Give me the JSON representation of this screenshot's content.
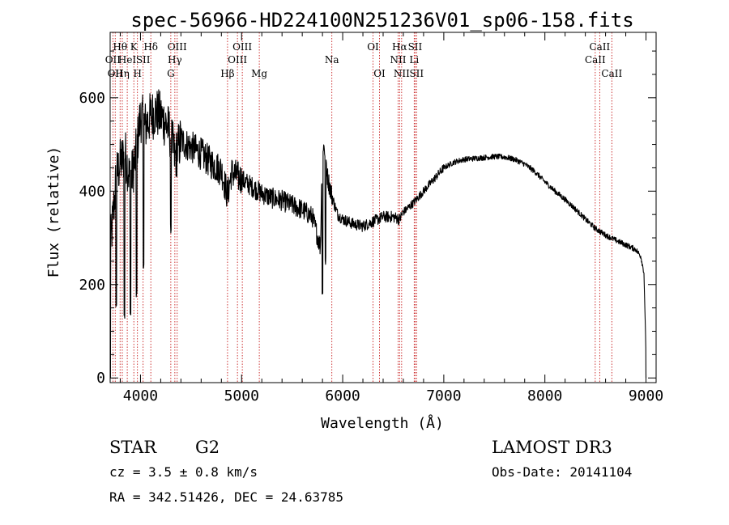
{
  "chart_data": {
    "type": "line",
    "title": "spec-56966-HD224100N251236V01_sp06-158.fits",
    "xlabel": "Wavelength (Å)",
    "ylabel": "Flux (relative)",
    "xlim": [
      3700,
      9100
    ],
    "ylim": [
      -10,
      740
    ],
    "x_ticks": [
      4000,
      5000,
      6000,
      7000,
      8000,
      9000
    ],
    "y_ticks": [
      0,
      200,
      400,
      600
    ],
    "spectrum_anchor_points": {
      "x": [
        3700,
        3760,
        3800,
        3850,
        3900,
        3950,
        4000,
        4050,
        4100,
        4150,
        4200,
        4250,
        4300,
        4340,
        4400,
        4450,
        4500,
        4600,
        4700,
        4800,
        4861,
        4900,
        5000,
        5100,
        5200,
        5300,
        5400,
        5500,
        5600,
        5700,
        5780,
        5800,
        5830,
        5850,
        5893,
        5920,
        5950,
        6000,
        6100,
        6200,
        6300,
        6400,
        6500,
        6563,
        6600,
        6700,
        6800,
        6900,
        7000,
        7100,
        7200,
        7300,
        7400,
        7500,
        7600,
        7700,
        7800,
        7900,
        8000,
        8100,
        8200,
        8300,
        8400,
        8500,
        8600,
        8700,
        8800,
        8900,
        8950,
        8980,
        9000
      ],
      "y": [
        270,
        430,
        460,
        480,
        420,
        470,
        560,
        540,
        560,
        570,
        560,
        545,
        520,
        470,
        510,
        500,
        495,
        480,
        460,
        445,
        390,
        440,
        425,
        410,
        395,
        385,
        380,
        370,
        360,
        345,
        280,
        505,
        480,
        430,
        390,
        370,
        350,
        340,
        330,
        325,
        335,
        345,
        345,
        340,
        355,
        375,
        400,
        425,
        450,
        462,
        468,
        470,
        472,
        474,
        473,
        468,
        458,
        442,
        420,
        400,
        382,
        362,
        340,
        320,
        306,
        295,
        285,
        275,
        260,
        225,
        50
      ],
      "deep_dips": [
        [
          3760,
          150
        ],
        [
          3840,
          120
        ],
        [
          3900,
          125
        ],
        [
          3960,
          170
        ],
        [
          4030,
          230
        ],
        [
          4300,
          310
        ],
        [
          5800,
          170
        ],
        [
          5830,
          240
        ]
      ]
    },
    "spectral_lines": [
      {
        "wavelength": 3727,
        "label": "OII",
        "row": 2
      },
      {
        "wavelength": 3750,
        "label": "OII",
        "row": 3
      },
      {
        "wavelength": 3798,
        "label": "Hθ",
        "row": 1
      },
      {
        "wavelength": 3820,
        "label": "Hη",
        "row": 3
      },
      {
        "wavelength": 3869,
        "label": "HeI",
        "row": 2
      },
      {
        "wavelength": 3934,
        "label": "K",
        "row": 1
      },
      {
        "wavelength": 3970,
        "label": "H",
        "row": 3
      },
      {
        "wavelength": 4026,
        "label": "SII",
        "row": 2
      },
      {
        "wavelength": 4102,
        "label": "Hδ",
        "row": 1
      },
      {
        "wavelength": 4300,
        "label": "G",
        "row": 3
      },
      {
        "wavelength": 4340,
        "label": "Hγ",
        "row": 2
      },
      {
        "wavelength": 4363,
        "label": "OIII",
        "row": 1
      },
      {
        "wavelength": 4861,
        "label": "Hβ",
        "row": 3
      },
      {
        "wavelength": 4959,
        "label": "OIII",
        "row": 2
      },
      {
        "wavelength": 5007,
        "label": "OIII",
        "row": 1
      },
      {
        "wavelength": 5175,
        "label": "Mg",
        "row": 3
      },
      {
        "wavelength": 5893,
        "label": "Na",
        "row": 2
      },
      {
        "wavelength": 6300,
        "label": "OI",
        "row": 1
      },
      {
        "wavelength": 6364,
        "label": "OI",
        "row": 3
      },
      {
        "wavelength": 6548,
        "label": "NII",
        "row": 2
      },
      {
        "wavelength": 6563,
        "label": "Hα",
        "row": 1
      },
      {
        "wavelength": 6583,
        "label": "NII",
        "row": 3
      },
      {
        "wavelength": 6707,
        "label": "Li",
        "row": 2
      },
      {
        "wavelength": 6716,
        "label": "SII",
        "row": 1
      },
      {
        "wavelength": 6731,
        "label": "SII",
        "row": 3
      },
      {
        "wavelength": 8498,
        "label": "CaII",
        "row": 2
      },
      {
        "wavelength": 8542,
        "label": "CaII",
        "row": 1
      },
      {
        "wavelength": 8662,
        "label": "CaII",
        "row": 3
      }
    ],
    "line_color": "#000000",
    "marker_color": "#c00000"
  },
  "footer": {
    "object_class": "STAR",
    "subclass": "G2",
    "redshift": "cz = 3.5 ± 0.8 km/s",
    "coordinates": "RA = 342.51426, DEC =  24.63785",
    "survey": "LAMOST DR3",
    "obs_date": "Obs-Date: 20141104"
  }
}
